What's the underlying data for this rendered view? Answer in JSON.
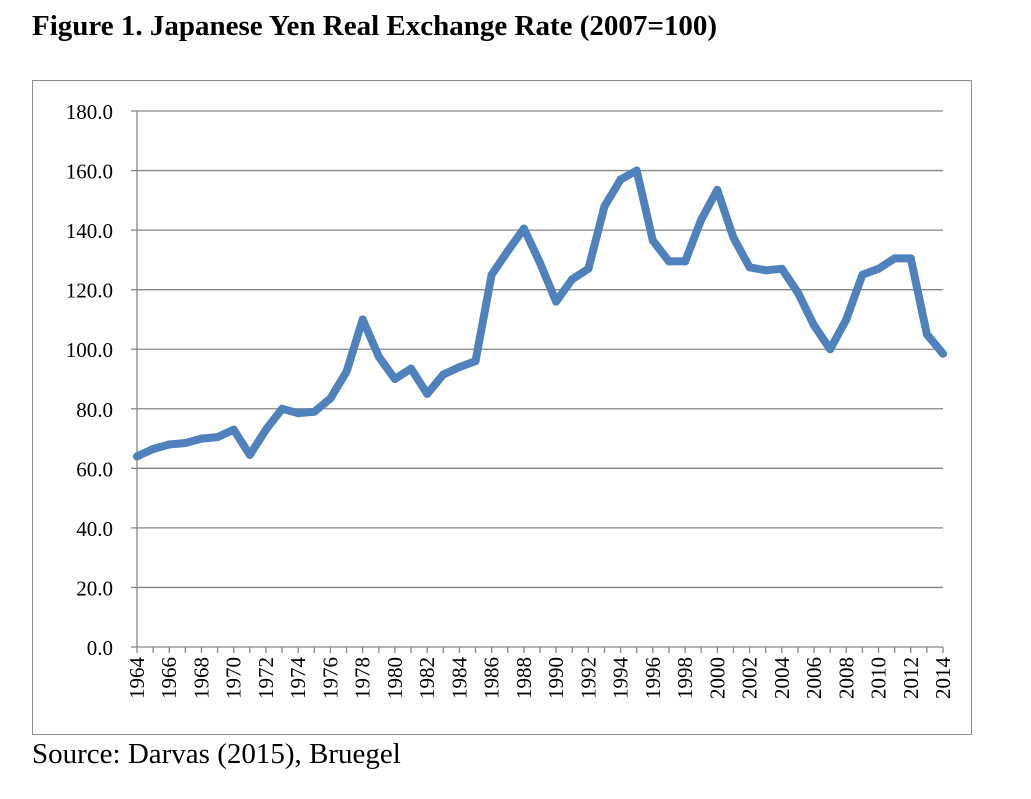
{
  "figure": {
    "title": "Figure 1.  Japanese Yen Real Exchange Rate (2007=100)",
    "source": "Source: Darvas (2015), Bruegel"
  },
  "colors": {
    "line": "#4f81bd",
    "grid": "#868686",
    "axis": "#868686"
  },
  "chart_data": {
    "type": "line",
    "title": "",
    "xlabel": "",
    "ylabel": "",
    "ylim": [
      0,
      180
    ],
    "y_ticks": [
      "0.0",
      "20.0",
      "40.0",
      "60.0",
      "80.0",
      "100.0",
      "120.0",
      "140.0",
      "160.0",
      "180.0"
    ],
    "grid": true,
    "legend": "none",
    "x": [
      1964,
      1965,
      1966,
      1967,
      1968,
      1969,
      1970,
      1971,
      1972,
      1973,
      1974,
      1975,
      1976,
      1977,
      1978,
      1979,
      1980,
      1981,
      1982,
      1983,
      1984,
      1985,
      1986,
      1987,
      1988,
      1989,
      1990,
      1991,
      1992,
      1993,
      1994,
      1995,
      1996,
      1997,
      1998,
      1999,
      2000,
      2001,
      2002,
      2003,
      2004,
      2005,
      2006,
      2007,
      2008,
      2009,
      2010,
      2011,
      2012,
      2013,
      2014
    ],
    "x_tick_labels": [
      "1964",
      "1966",
      "1968",
      "1970",
      "1972",
      "1974",
      "1976",
      "1978",
      "1980",
      "1982",
      "1984",
      "1986",
      "1988",
      "1990",
      "1992",
      "1994",
      "1996",
      "1998",
      "2000",
      "2002",
      "2004",
      "2006",
      "2008",
      "2010",
      "2012",
      "2014"
    ],
    "series": [
      {
        "name": "Japanese Yen Real Exchange Rate",
        "values": [
          64.0,
          66.5,
          68.0,
          68.5,
          70.0,
          70.5,
          73.0,
          64.5,
          73.0,
          80.0,
          78.5,
          79.0,
          83.5,
          92.5,
          110.0,
          97.5,
          90.0,
          93.5,
          85.0,
          91.5,
          94.0,
          96.0,
          125.0,
          133.0,
          140.5,
          129.0,
          116.0,
          123.5,
          127.0,
          148.0,
          157.0,
          160.0,
          136.5,
          129.5,
          129.5,
          143.5,
          153.5,
          137.5,
          127.5,
          126.5,
          127.0,
          119.0,
          108.0,
          100.0,
          110.0,
          125.0,
          127.0,
          130.5,
          130.5,
          105.0,
          98.5
        ]
      }
    ]
  }
}
